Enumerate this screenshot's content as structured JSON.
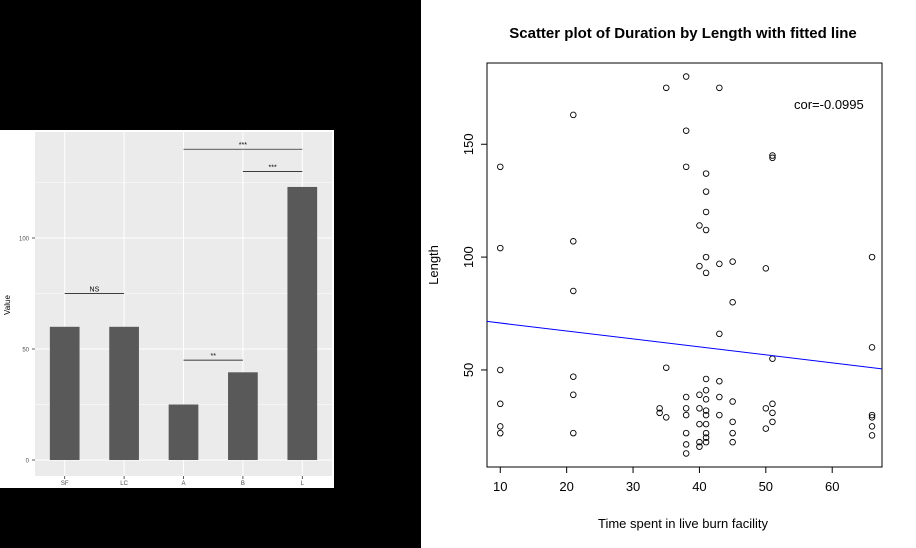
{
  "chart_data": [
    {
      "type": "bar",
      "title": "",
      "xlabel": "",
      "ylabel": "Value",
      "ylim": [
        0,
        130
      ],
      "yticks": [
        0,
        50,
        100
      ],
      "categories": [
        "SF",
        "LC",
        "A",
        "B",
        "L"
      ],
      "values": [
        60,
        60,
        25,
        39.5,
        123
      ],
      "bar_color": "#595959",
      "panel_color": "#ebebeb",
      "grid": true,
      "annotations": [
        {
          "label": "NS",
          "from": 0,
          "to": 1,
          "y": 75
        },
        {
          "label": "**",
          "from": 2,
          "to": 3,
          "y": 45
        },
        {
          "label": "***",
          "from": 2,
          "to": 4,
          "y": 140
        },
        {
          "label": "***",
          "from": 3,
          "to": 4,
          "y": 130
        }
      ]
    },
    {
      "type": "scatter",
      "title": "Scatter plot of Duration by Length with fitted line",
      "xlabel": "Time spent in live burn facility",
      "ylabel": "Length",
      "xlim": [
        8,
        67.5
      ],
      "ylim": [
        7,
        186
      ],
      "xticks": [
        10,
        20,
        30,
        40,
        50,
        60
      ],
      "yticks": [
        50,
        100,
        150
      ],
      "grid": false,
      "annotation": "cor=-0.0995",
      "fit_line": {
        "x": [
          8,
          67.5
        ],
        "y": [
          71.5,
          50.5
        ],
        "color": "#0000ff"
      },
      "points": [
        [
          10,
          140
        ],
        [
          10,
          104
        ],
        [
          10,
          50
        ],
        [
          10,
          35
        ],
        [
          10,
          25
        ],
        [
          10,
          22
        ],
        [
          21,
          163
        ],
        [
          21,
          107
        ],
        [
          21,
          85
        ],
        [
          21,
          47
        ],
        [
          21,
          39
        ],
        [
          21,
          22
        ],
        [
          34,
          33
        ],
        [
          34,
          31
        ],
        [
          35,
          175
        ],
        [
          35,
          51
        ],
        [
          35,
          29
        ],
        [
          38,
          180
        ],
        [
          38,
          156
        ],
        [
          38,
          140
        ],
        [
          38,
          38
        ],
        [
          38,
          33
        ],
        [
          38,
          30
        ],
        [
          38,
          22
        ],
        [
          38,
          17
        ],
        [
          38,
          13
        ],
        [
          40,
          114
        ],
        [
          40,
          96
        ],
        [
          40,
          39
        ],
        [
          40,
          33
        ],
        [
          40,
          26
        ],
        [
          40,
          18
        ],
        [
          40,
          16
        ],
        [
          41,
          137
        ],
        [
          41,
          129
        ],
        [
          41,
          120
        ],
        [
          41,
          112
        ],
        [
          41,
          100
        ],
        [
          41,
          93
        ],
        [
          41,
          46
        ],
        [
          41,
          41
        ],
        [
          41,
          37
        ],
        [
          41,
          32
        ],
        [
          41,
          30
        ],
        [
          41,
          26
        ],
        [
          41,
          22
        ],
        [
          41,
          20
        ],
        [
          41,
          18
        ],
        [
          43,
          175
        ],
        [
          43,
          97
        ],
        [
          43,
          66
        ],
        [
          43,
          45
        ],
        [
          43,
          38
        ],
        [
          43,
          30
        ],
        [
          45,
          98
        ],
        [
          45,
          80
        ],
        [
          45,
          36
        ],
        [
          45,
          27
        ],
        [
          45,
          22
        ],
        [
          45,
          18
        ],
        [
          50,
          95
        ],
        [
          50,
          33
        ],
        [
          50,
          24
        ],
        [
          51,
          145
        ],
        [
          51,
          144
        ],
        [
          51,
          55
        ],
        [
          51,
          35
        ],
        [
          51,
          31
        ],
        [
          51,
          27
        ],
        [
          66,
          100
        ],
        [
          66,
          60
        ],
        [
          66,
          30
        ],
        [
          66,
          29
        ],
        [
          66,
          25
        ],
        [
          66,
          21
        ]
      ]
    }
  ]
}
